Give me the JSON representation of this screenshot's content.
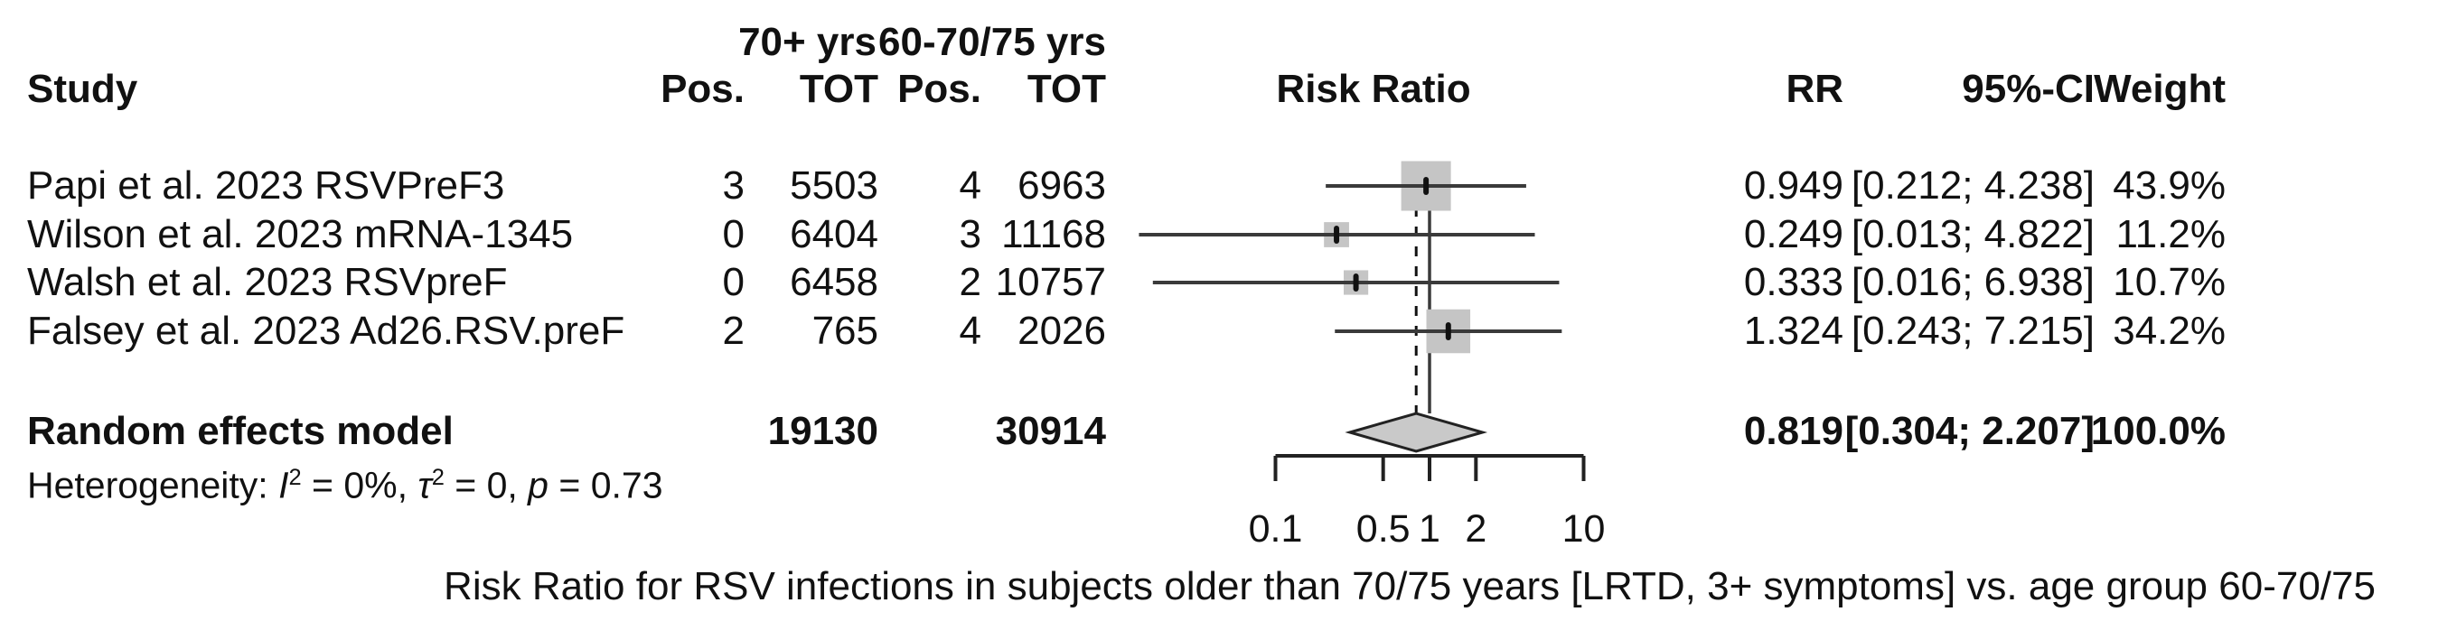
{
  "figure": {
    "group_headers": {
      "col1": "70+ yrs",
      "col2": "60-70/75 yrs"
    },
    "column_headers": {
      "study": "Study",
      "pos": "Pos.",
      "tot": "TOT",
      "plot": "Risk Ratio",
      "rr": "RR",
      "ci": "95%-CI",
      "weight": "Weight"
    },
    "footer": "Risk Ratio for RSV infections in subjects older than 70/75 years [LRTD, 3+ symptoms] vs. age group 60-70/75"
  },
  "chart_data": {
    "type": "forest",
    "title": "Risk Ratio",
    "x_scale": "log",
    "x_range": [
      0.1,
      10
    ],
    "x_ticks": [
      0.1,
      0.5,
      1,
      2,
      10
    ],
    "x_tick_labels": [
      "0.1",
      "0.5",
      "1",
      "2",
      "10"
    ],
    "ref_line": 1.0,
    "pooled_line": 0.819,
    "studies": [
      {
        "name": "Papi et al. 2023 RSVPreF3",
        "pos_70plus": "3",
        "tot_70plus": "5503",
        "pos_60_75": "4",
        "tot_60_75": "6963",
        "rr": 0.949,
        "ci_low": 0.212,
        "ci_high": 4.238,
        "weight_pct": 43.9,
        "rr_label": "0.949",
        "ci_label": "[0.212; 4.238]",
        "weight_label": "43.9%"
      },
      {
        "name": "Wilson et al. 2023 mRNA-1345",
        "pos_70plus": "0",
        "tot_70plus": "6404",
        "pos_60_75": "3",
        "tot_60_75": "11168",
        "rr": 0.249,
        "ci_low": 0.013,
        "ci_high": 4.822,
        "weight_pct": 11.2,
        "rr_label": "0.249",
        "ci_label": "[0.013; 4.822]",
        "weight_label": "11.2%"
      },
      {
        "name": "Walsh et al. 2023 RSVpreF",
        "pos_70plus": "0",
        "tot_70plus": "6458",
        "pos_60_75": "2",
        "tot_60_75": "10757",
        "rr": 0.333,
        "ci_low": 0.016,
        "ci_high": 6.938,
        "weight_pct": 10.7,
        "rr_label": "0.333",
        "ci_label": "[0.016; 6.938]",
        "weight_label": "10.7%"
      },
      {
        "name": "Falsey et al. 2023 Ad26.RSV.preF",
        "pos_70plus": "2",
        "tot_70plus": "765",
        "pos_60_75": "4",
        "tot_60_75": "2026",
        "rr": 1.324,
        "ci_low": 0.243,
        "ci_high": 7.215,
        "weight_pct": 34.2,
        "rr_label": "1.324",
        "ci_label": "[0.243; 7.215]",
        "weight_label": "34.2%"
      }
    ],
    "summary": {
      "label": "Random effects model",
      "tot_70plus": "19130",
      "tot_60_75": "30914",
      "rr": 0.819,
      "ci_low": 0.304,
      "ci_high": 2.207,
      "weight_pct": 100.0,
      "rr_label": "0.819",
      "ci_label": "[0.304; 2.207]",
      "weight_label": "100.0%"
    },
    "heterogeneity": {
      "text": "Heterogeneity: I² = 0%, τ² = 0, p = 0.73",
      "segments": [
        {
          "t": "Heterogeneity: "
        },
        {
          "t": "I",
          "style": "italic"
        },
        {
          "t": "2",
          "style": "sup"
        },
        {
          "t": " = 0%, "
        },
        {
          "t": "τ",
          "style": "italic"
        },
        {
          "t": "2",
          "style": "sup"
        },
        {
          "t": " = 0, "
        },
        {
          "t": "p",
          "style": "italic"
        },
        {
          "t": " = 0.73"
        }
      ]
    }
  },
  "colors": {
    "square_fill": "#c5c5c5",
    "diamond_fill": "#c9c9c9",
    "line": "#3a3a3a",
    "axis": "#222222",
    "marker": "#111111",
    "text": "#111111"
  }
}
